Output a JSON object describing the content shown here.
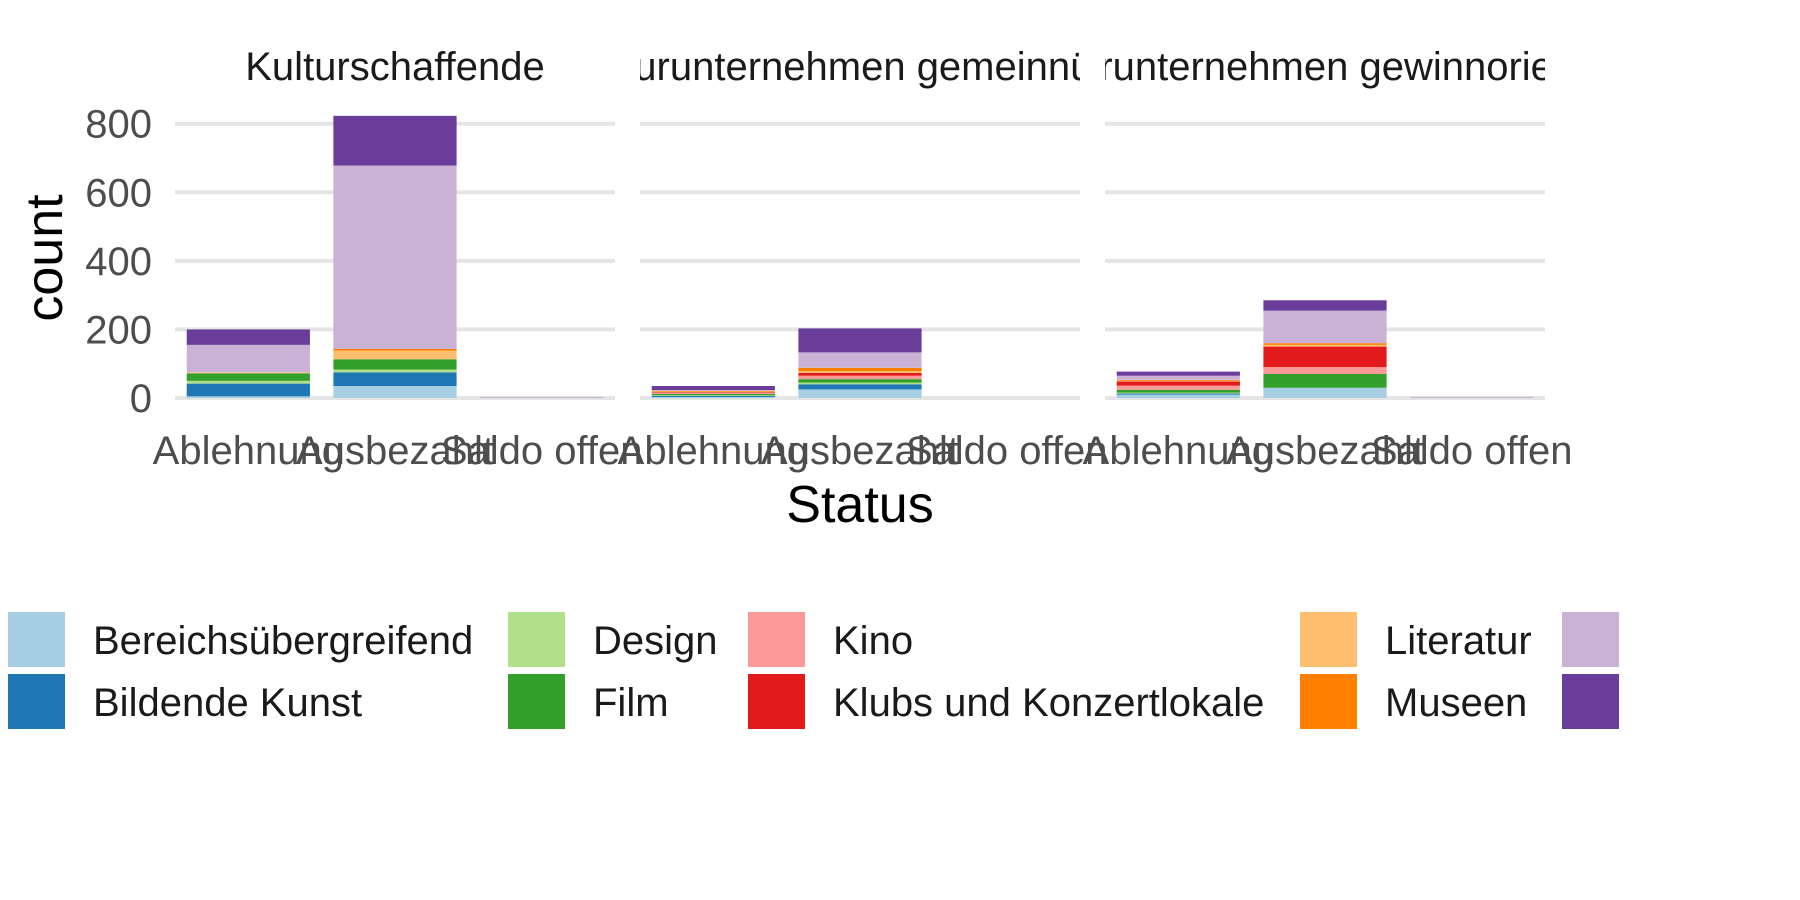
{
  "chart_data": {
    "type": "bar",
    "stacked": true,
    "facets": [
      "Kulturschaffende",
      "Kulturunternehmen gemeinnützig",
      "Kulturunternehmen gewinnorientiert"
    ],
    "categories": [
      "Ablehnung",
      "Ausbezahlt",
      "Saldo offen"
    ],
    "xlabel": "Status",
    "ylabel": "count",
    "y_ticks": [
      0,
      200,
      400,
      600,
      800
    ],
    "ylim": [
      0,
      840
    ],
    "grid": true,
    "legend_position": "bottom",
    "series": [
      {
        "name": "Bereichsübergreifend",
        "color": "#A6CEE3",
        "values": [
          [
            5,
            35,
            0
          ],
          [
            3,
            25,
            0
          ],
          [
            10,
            30,
            0
          ]
        ]
      },
      {
        "name": "Bildende Kunst",
        "color": "#1F78B4",
        "values": [
          [
            37,
            40,
            0
          ],
          [
            3,
            15,
            0
          ],
          [
            3,
            0,
            0
          ]
        ]
      },
      {
        "name": "Design",
        "color": "#B2DF8A",
        "values": [
          [
            8,
            8,
            0
          ],
          [
            2,
            5,
            0
          ],
          [
            3,
            0,
            0
          ]
        ]
      },
      {
        "name": "Film",
        "color": "#33A02C",
        "values": [
          [
            22,
            30,
            0
          ],
          [
            4,
            10,
            0
          ],
          [
            8,
            40,
            0
          ]
        ]
      },
      {
        "name": "Kino",
        "color": "#FB9A99",
        "values": [
          [
            0,
            0,
            0
          ],
          [
            3,
            10,
            0
          ],
          [
            12,
            20,
            0
          ]
        ]
      },
      {
        "name": "Klubs und Konzertlokale",
        "color": "#E31A1C",
        "values": [
          [
            0,
            0,
            0
          ],
          [
            2,
            8,
            0
          ],
          [
            12,
            60,
            0
          ]
        ]
      },
      {
        "name": "Literatur",
        "color": "#FDBF6F",
        "values": [
          [
            3,
            25,
            0
          ],
          [
            2,
            5,
            0
          ],
          [
            3,
            5,
            0
          ]
        ]
      },
      {
        "name": "Museen",
        "color": "#FF7F00",
        "values": [
          [
            0,
            5,
            0
          ],
          [
            2,
            10,
            0
          ],
          [
            2,
            5,
            0
          ]
        ]
      },
      {
        "name": "",
        "color": "#CAB2D6",
        "values": [
          [
            80,
            535,
            3
          ],
          [
            2,
            45,
            0
          ],
          [
            12,
            95,
            3
          ]
        ]
      },
      {
        "name": "",
        "color": "#6A3D9A",
        "values": [
          [
            45,
            145,
            0
          ],
          [
            12,
            70,
            0
          ],
          [
            12,
            30,
            0
          ]
        ]
      }
    ]
  }
}
